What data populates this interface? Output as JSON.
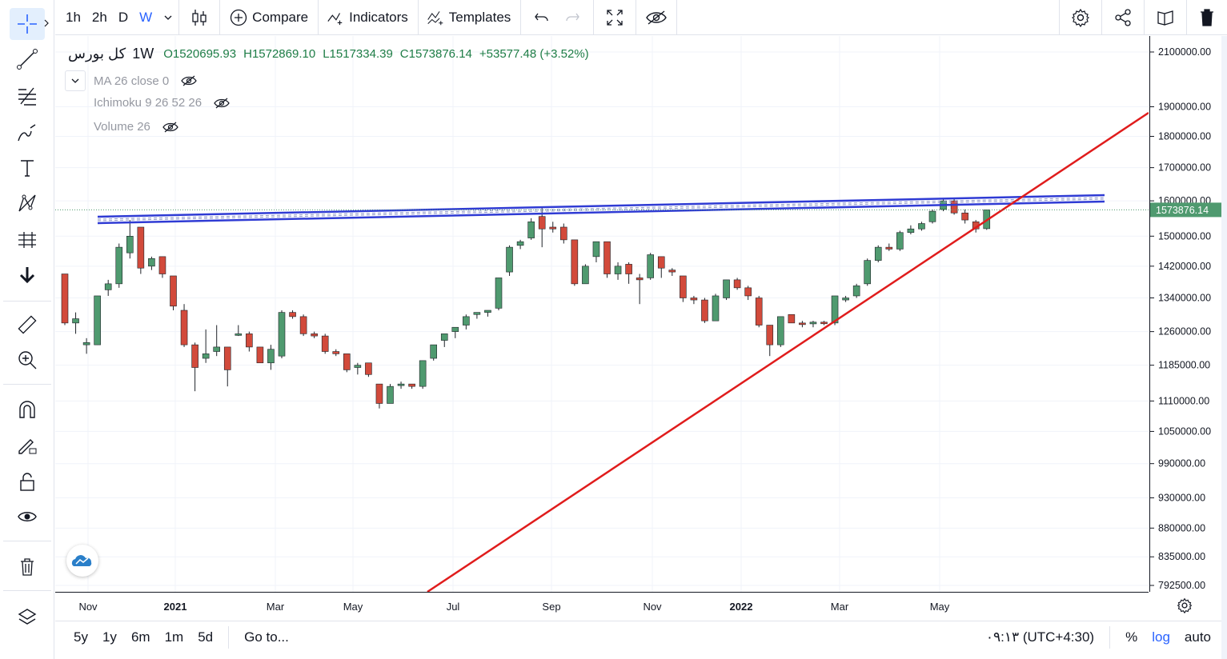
{
  "toolbar": {
    "intervals": [
      "1h",
      "2h",
      "D",
      "W"
    ],
    "active_interval": "W",
    "compare_label": "Compare",
    "indicators_label": "Indicators",
    "templates_label": "Templates"
  },
  "legend": {
    "symbol": "کل بورس",
    "interval": "1W",
    "open": "O1520695.93",
    "high": "H1572869.10",
    "low": "L1517334.39",
    "close": "C1573876.14",
    "change": "+53577.48 (+3.52%)",
    "indicators": [
      "MA 26 close 0",
      "Ichimoku 9 26 52 26",
      "Volume 26"
    ]
  },
  "price_axis": {
    "ticks": [
      "2100000.00",
      "1900000.00",
      "1800000.00",
      "1700000.00",
      "1600000.00",
      "1500000.00",
      "1420000.00",
      "1340000.00",
      "1260000.00",
      "1185000.00",
      "1110000.00",
      "1050000.00",
      "990000.00",
      "930000.00",
      "880000.00",
      "835000.00",
      "792500.00"
    ],
    "last_price": "1573876.14",
    "scale": "log"
  },
  "time_axis": {
    "labels": [
      "Nov",
      "2021",
      "Mar",
      "May",
      "Jul",
      "Sep",
      "Nov",
      "2022",
      "Mar",
      "May"
    ]
  },
  "bottombar": {
    "ranges": [
      "5y",
      "1y",
      "6m",
      "1m",
      "5d"
    ],
    "goto_label": "Go to...",
    "clock": "۰۹:۱۳ (UTC+4:30)",
    "percent_label": "%",
    "log_label": "log",
    "auto_label": "auto"
  },
  "colors": {
    "up": "#4f9a6f",
    "down": "#d24a3b",
    "channel": "#2f3bd4",
    "trend": "#e01c1c",
    "accent": "#2962ff"
  },
  "chart_data": {
    "type": "candlestick",
    "interval": "1W",
    "scale": "log",
    "ylim": [
      792500,
      2100000
    ],
    "candles": [
      [
        1400000,
        1400000,
        1275000,
        1280000
      ],
      [
        1280000,
        1305000,
        1255000,
        1290000
      ],
      [
        1230000,
        1245000,
        1210000,
        1235000
      ],
      [
        1230000,
        1345000,
        1230000,
        1345000
      ],
      [
        1360000,
        1385000,
        1345000,
        1375000
      ],
      [
        1375000,
        1480000,
        1365000,
        1470000
      ],
      [
        1455000,
        1545000,
        1440000,
        1500000
      ],
      [
        1525000,
        1525000,
        1400000,
        1415000
      ],
      [
        1420000,
        1445000,
        1410000,
        1440000
      ],
      [
        1445000,
        1445000,
        1390000,
        1400000
      ],
      [
        1395000,
        1395000,
        1310000,
        1320000
      ],
      [
        1310000,
        1325000,
        1225000,
        1230000
      ],
      [
        1230000,
        1235000,
        1130000,
        1180000
      ],
      [
        1200000,
        1265000,
        1190000,
        1210000
      ],
      [
        1215000,
        1275000,
        1205000,
        1225000
      ],
      [
        1225000,
        1225000,
        1140000,
        1175000
      ],
      [
        1255000,
        1275000,
        1250000,
        1255000
      ],
      [
        1255000,
        1260000,
        1215000,
        1225000
      ],
      [
        1225000,
        1225000,
        1190000,
        1190000
      ],
      [
        1190000,
        1230000,
        1175000,
        1220000
      ],
      [
        1205000,
        1310000,
        1200000,
        1305000
      ],
      [
        1305000,
        1310000,
        1290000,
        1295000
      ],
      [
        1295000,
        1300000,
        1250000,
        1255000
      ],
      [
        1255000,
        1260000,
        1245000,
        1250000
      ],
      [
        1250000,
        1255000,
        1210000,
        1215000
      ],
      [
        1215000,
        1220000,
        1205000,
        1210000
      ],
      [
        1210000,
        1210000,
        1170000,
        1175000
      ],
      [
        1180000,
        1190000,
        1165000,
        1185000
      ],
      [
        1190000,
        1190000,
        1160000,
        1165000
      ],
      [
        1145000,
        1145000,
        1095000,
        1105000
      ],
      [
        1105000,
        1145000,
        1105000,
        1140000
      ],
      [
        1145000,
        1150000,
        1135000,
        1145000
      ],
      [
        1145000,
        1145000,
        1135000,
        1140000
      ],
      [
        1140000,
        1195000,
        1135000,
        1195000
      ],
      [
        1200000,
        1230000,
        1195000,
        1230000
      ],
      [
        1240000,
        1250000,
        1225000,
        1255000
      ],
      [
        1260000,
        1270000,
        1245000,
        1270000
      ],
      [
        1275000,
        1300000,
        1265000,
        1295000
      ],
      [
        1300000,
        1305000,
        1290000,
        1305000
      ],
      [
        1305000,
        1310000,
        1295000,
        1310000
      ],
      [
        1315000,
        1390000,
        1310000,
        1390000
      ],
      [
        1405000,
        1475000,
        1395000,
        1470000
      ],
      [
        1475000,
        1490000,
        1465000,
        1485000
      ],
      [
        1495000,
        1550000,
        1490000,
        1540000
      ],
      [
        1555000,
        1580000,
        1470000,
        1520000
      ],
      [
        1525000,
        1540000,
        1510000,
        1520000
      ],
      [
        1525000,
        1535000,
        1480000,
        1490000
      ],
      [
        1490000,
        1490000,
        1370000,
        1375000
      ],
      [
        1375000,
        1425000,
        1375000,
        1420000
      ],
      [
        1445000,
        1485000,
        1430000,
        1485000
      ],
      [
        1485000,
        1485000,
        1390000,
        1400000
      ],
      [
        1400000,
        1430000,
        1385000,
        1420000
      ],
      [
        1425000,
        1430000,
        1375000,
        1400000
      ],
      [
        1390000,
        1400000,
        1325000,
        1385000
      ],
      [
        1390000,
        1455000,
        1385000,
        1450000
      ],
      [
        1445000,
        1445000,
        1390000,
        1415000
      ],
      [
        1410000,
        1415000,
        1395000,
        1405000
      ],
      [
        1395000,
        1395000,
        1330000,
        1340000
      ],
      [
        1340000,
        1345000,
        1325000,
        1335000
      ],
      [
        1335000,
        1340000,
        1280000,
        1285000
      ],
      [
        1285000,
        1350000,
        1285000,
        1345000
      ],
      [
        1340000,
        1385000,
        1335000,
        1385000
      ],
      [
        1385000,
        1390000,
        1360000,
        1365000
      ],
      [
        1365000,
        1370000,
        1335000,
        1345000
      ],
      [
        1340000,
        1345000,
        1270000,
        1275000
      ],
      [
        1275000,
        1275000,
        1205000,
        1230000
      ],
      [
        1230000,
        1295000,
        1225000,
        1295000
      ],
      [
        1300000,
        1300000,
        1280000,
        1280000
      ],
      [
        1280000,
        1285000,
        1270000,
        1278000
      ],
      [
        1278000,
        1285000,
        1270000,
        1282000
      ],
      [
        1282000,
        1285000,
        1275000,
        1280000
      ],
      [
        1280000,
        1345000,
        1275000,
        1345000
      ],
      [
        1335000,
        1345000,
        1330000,
        1340000
      ],
      [
        1345000,
        1375000,
        1340000,
        1370000
      ],
      [
        1375000,
        1440000,
        1370000,
        1435000
      ],
      [
        1435000,
        1475000,
        1430000,
        1470000
      ],
      [
        1470000,
        1480000,
        1460000,
        1465000
      ],
      [
        1465000,
        1515000,
        1460000,
        1510000
      ],
      [
        1510000,
        1530000,
        1505000,
        1520000
      ],
      [
        1520000,
        1540000,
        1515000,
        1535000
      ],
      [
        1540000,
        1575000,
        1535000,
        1570000
      ],
      [
        1575000,
        1605000,
        1570000,
        1600000
      ],
      [
        1600000,
        1605000,
        1560000,
        1565000
      ],
      [
        1565000,
        1575000,
        1535000,
        1545000
      ],
      [
        1540000,
        1545000,
        1510000,
        1520000
      ],
      [
        1520695.93,
        1572869.1,
        1517334.39,
        1573876.14
      ]
    ]
  }
}
